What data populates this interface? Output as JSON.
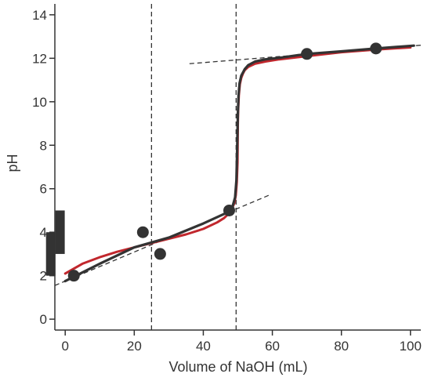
{
  "chart_data": {
    "type": "line",
    "xlabel": "Volume of NaOH (mL)",
    "ylabel": "pH",
    "xlim": [
      -3,
      103
    ],
    "ylim": [
      -0.5,
      14.5
    ],
    "xticks": [
      0,
      20,
      40,
      60,
      80,
      100
    ],
    "yticks": [
      0,
      2,
      4,
      6,
      8,
      10,
      12,
      14
    ],
    "grid": false,
    "legend": "none",
    "points": {
      "x": [
        2.5,
        22.5,
        27.5,
        47.5,
        70,
        90
      ],
      "y": [
        2.0,
        4.0,
        3.0,
        5.0,
        12.2,
        12.45
      ]
    },
    "series": [
      {
        "color": "#c1272d",
        "x": [
          0,
          5,
          10,
          15,
          20,
          25,
          30,
          35,
          40,
          44,
          46,
          47,
          48,
          48.5,
          49,
          49.4,
          49.7,
          49.9,
          50,
          50.1,
          50.3,
          50.6,
          51,
          51.5,
          52,
          53,
          55,
          58,
          62,
          70,
          80,
          90,
          100
        ],
        "y": [
          2.1,
          2.55,
          2.85,
          3.1,
          3.3,
          3.5,
          3.7,
          3.9,
          4.15,
          4.45,
          4.65,
          4.8,
          5.0,
          5.15,
          5.35,
          5.7,
          6.3,
          7.2,
          8.9,
          9.6,
          10.3,
          10.8,
          11.1,
          11.3,
          11.45,
          11.6,
          11.75,
          11.85,
          11.95,
          12.1,
          12.28,
          12.4,
          12.5
        ]
      },
      {
        "color": "#333333",
        "x": [
          0,
          10,
          20,
          30,
          40,
          47.5,
          48.5,
          49.2,
          49.6,
          49.8,
          50,
          50.2,
          50.5,
          51,
          52,
          53,
          55,
          58,
          62,
          70,
          80,
          90,
          101
        ],
        "y": [
          1.75,
          2.55,
          3.3,
          3.75,
          4.4,
          4.95,
          5.2,
          5.6,
          6.4,
          7.8,
          9.4,
          10.3,
          10.85,
          11.2,
          11.5,
          11.68,
          11.85,
          11.95,
          12.02,
          12.2,
          12.32,
          12.45,
          12.58
        ]
      }
    ],
    "dashed_lines": [
      {
        "x": [
          -3,
          59
        ],
        "y": [
          1.55,
          5.7
        ]
      },
      {
        "x": [
          36,
          103
        ],
        "y": [
          11.75,
          12.6
        ]
      },
      {
        "x": [
          25,
          25
        ],
        "y": [
          -0.5,
          14.5
        ]
      },
      {
        "x": [
          49.5,
          49.5
        ],
        "y": [
          -0.5,
          14.5
        ]
      }
    ],
    "ph_range_markers": [
      {
        "x": -1.5,
        "y": [
          3.0,
          5.0
        ]
      },
      {
        "x": -4.2,
        "y": [
          2.0,
          4.0
        ]
      }
    ]
  }
}
